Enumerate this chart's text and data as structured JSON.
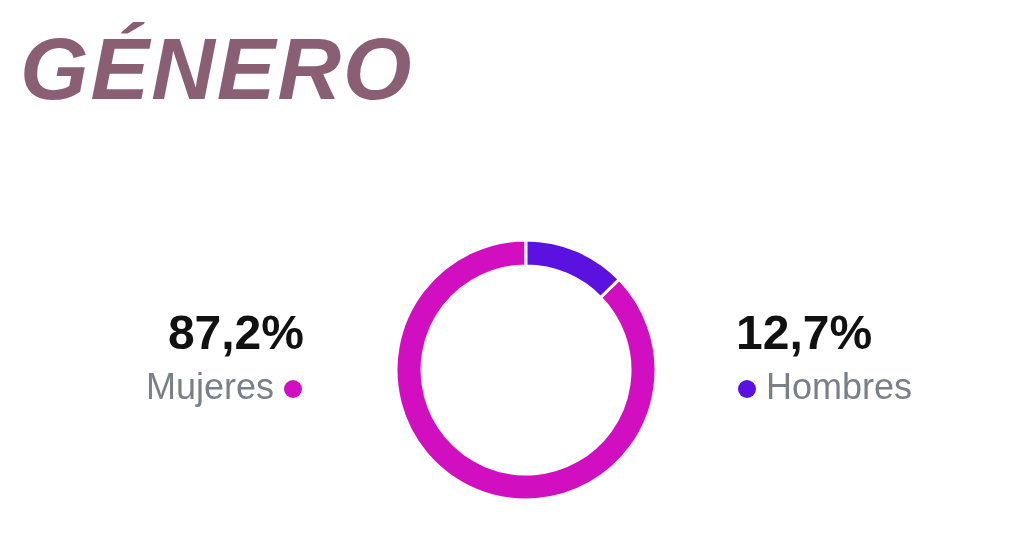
{
  "chart_data": {
    "type": "donut",
    "title": "GÉNERO",
    "categories": [
      "Mujeres",
      "Hombres"
    ],
    "values": [
      87.2,
      12.7
    ],
    "colors": [
      "#d20fc0",
      "#5b12e0"
    ],
    "value_labels": [
      "87,2%",
      "12,7%"
    ]
  }
}
